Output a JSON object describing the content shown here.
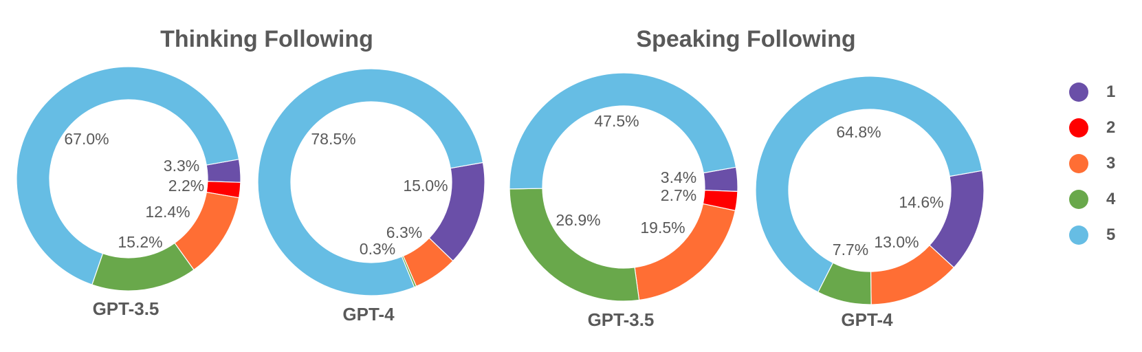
{
  "panels": [
    {
      "title": "Thinking Following"
    },
    {
      "title": "Speaking Following"
    }
  ],
  "legend": [
    {
      "label": "1",
      "color": "#6a4fa8"
    },
    {
      "label": "2",
      "color": "#ff0000"
    },
    {
      "label": "3",
      "color": "#ff6e34"
    },
    {
      "label": "4",
      "color": "#69a84b"
    },
    {
      "label": "5",
      "color": "#66bde4"
    }
  ],
  "chart_data": [
    {
      "type": "pie",
      "group": "Thinking Following",
      "title": "GPT-3.5",
      "categories": [
        "1",
        "2",
        "3",
        "4",
        "5"
      ],
      "values": [
        3.3,
        2.2,
        12.4,
        15.2,
        67.0
      ],
      "labels": [
        "3.3%",
        "2.2%",
        "12.4%",
        "15.2%",
        "67.0%"
      ]
    },
    {
      "type": "pie",
      "group": "Thinking Following",
      "title": "GPT-4",
      "categories": [
        "1",
        "2",
        "3",
        "4",
        "5"
      ],
      "values": [
        15.0,
        0.0,
        6.3,
        0.3,
        78.5
      ],
      "labels": [
        "15.0%",
        "",
        "6.3%",
        "0.3%",
        "78.5%"
      ]
    },
    {
      "type": "pie",
      "group": "Speaking Following",
      "title": "GPT-3.5",
      "categories": [
        "1",
        "2",
        "3",
        "4",
        "5"
      ],
      "values": [
        3.4,
        2.7,
        19.5,
        26.9,
        47.5
      ],
      "labels": [
        "3.4%",
        "2.7%",
        "19.5%",
        "26.9%",
        "47.5%"
      ]
    },
    {
      "type": "pie",
      "group": "Speaking Following",
      "title": "GPT-4",
      "categories": [
        "1",
        "2",
        "3",
        "4",
        "5"
      ],
      "values": [
        14.6,
        0.0,
        13.0,
        7.7,
        64.8
      ],
      "labels": [
        "14.6%",
        "",
        "13.0%",
        "7.7%",
        "64.8%"
      ]
    }
  ]
}
